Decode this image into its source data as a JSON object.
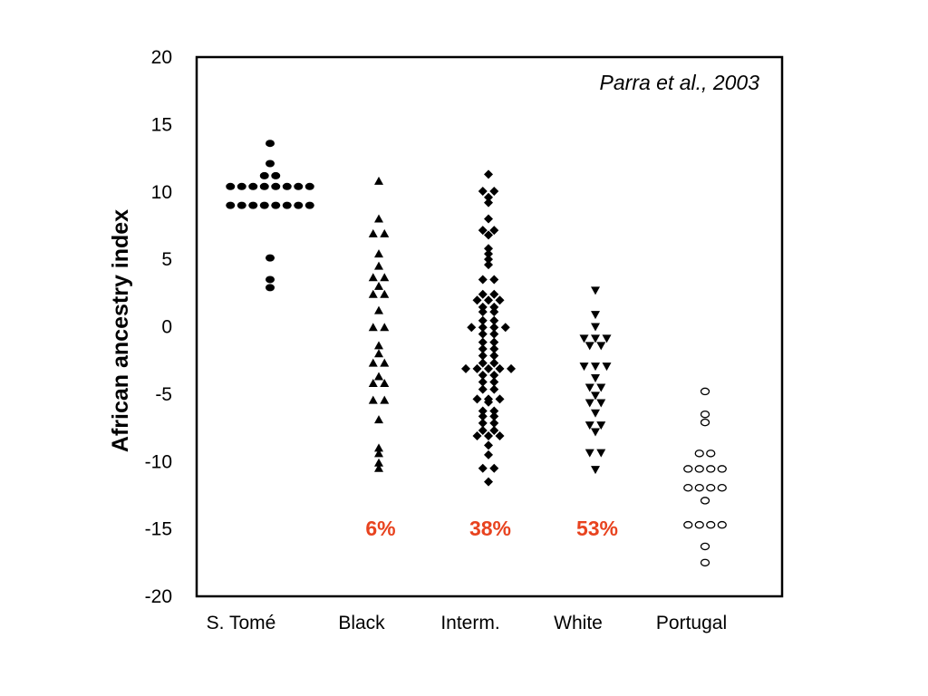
{
  "chart_data": {
    "type": "scatter",
    "title": "",
    "annotation": "Parra et al., 2003",
    "ylabel": "African ancestry index",
    "xlabel": "",
    "ylim": [
      -20,
      20
    ],
    "yticks": [
      20,
      15,
      10,
      5,
      0,
      -5,
      -10,
      -15,
      -20
    ],
    "grid": false,
    "legend": "none",
    "categories": [
      "S. Tomé",
      "Black",
      "Interm.",
      "White",
      "Portugal"
    ],
    "series": [
      {
        "category": "S. Tomé",
        "marker": "filled-circle",
        "values": [
          13.6,
          12.1,
          11.2,
          11.2,
          10.4,
          10.4,
          10.4,
          10.4,
          10.4,
          10.4,
          10.4,
          10.4,
          9.0,
          9.0,
          9.0,
          9.0,
          9.0,
          9.0,
          9.0,
          9.0,
          5.1,
          3.5,
          2.9
        ]
      },
      {
        "category": "Black",
        "marker": "filled-triangle-up",
        "values": [
          10.8,
          8.0,
          7.0,
          6.8,
          5.4,
          4.5,
          3.7,
          3.6,
          3.0,
          2.4,
          2.4,
          1.2,
          0.1,
          -0.2,
          -1.4,
          -2.0,
          -2.7,
          -2.7,
          -3.7,
          -4.2,
          -4.2,
          -5.4,
          -5.5,
          -6.9,
          -9.0,
          -9.4,
          -10.1,
          -10.5
        ]
      },
      {
        "category": "Interm.",
        "marker": "filled-diamond",
        "values": [
          11.3,
          10.2,
          9.9,
          9.6,
          9.2,
          8.0,
          7.3,
          7.0,
          6.8,
          5.8,
          5.4,
          5.0,
          4.6,
          3.5,
          3.5,
          2.5,
          2.3,
          2.1,
          2.0,
          1.8,
          1.6,
          1.3,
          1.2,
          1.0,
          0.6,
          0.3,
          0.0,
          0.0,
          0.0,
          -0.2,
          -0.4,
          -0.7,
          -1.0,
          -1.3,
          -1.5,
          -1.8,
          -2.0,
          -2.3,
          -2.6,
          -2.8,
          -3.0,
          -3.0,
          -3.1,
          -3.2,
          -3.3,
          -3.5,
          -3.7,
          -4.0,
          -4.2,
          -4.5,
          -4.8,
          -5.2,
          -5.4,
          -5.5,
          -5.6,
          -6.1,
          -6.4,
          -6.5,
          -6.8,
          -7.0,
          -7.3,
          -7.6,
          -7.8,
          -8.0,
          -8.0,
          -8.3,
          -8.8,
          -9.5,
          -10.4,
          -10.6,
          -11.5
        ]
      },
      {
        "category": "White",
        "marker": "filled-triangle-down",
        "values": [
          2.7,
          0.9,
          0.0,
          -0.7,
          -0.9,
          -1.0,
          -1.3,
          -1.5,
          -2.9,
          -2.9,
          -3.0,
          -3.8,
          -4.5,
          -4.5,
          -5.1,
          -5.6,
          -5.7,
          -6.4,
          -7.3,
          -7.3,
          -7.8,
          -9.3,
          -9.4,
          -10.6
        ]
      },
      {
        "category": "Portugal",
        "marker": "open-circle",
        "values": [
          -4.8,
          -6.5,
          -7.1,
          -9.3,
          -9.5,
          -10.4,
          -10.5,
          -10.6,
          -10.7,
          -11.9,
          -11.9,
          -12.0,
          -12.0,
          -12.9,
          -14.6,
          -14.6,
          -14.7,
          -14.9,
          -16.3,
          -17.5
        ]
      }
    ],
    "percent_labels": [
      {
        "category": "Black",
        "text": "6%"
      },
      {
        "category": "Interm.",
        "text": "38%"
      },
      {
        "category": "White",
        "text": "53%"
      }
    ],
    "colors": {
      "markers": "#000000",
      "percent_labels": "#e8431f",
      "frame": "#000000",
      "background": "#ffffff"
    }
  }
}
